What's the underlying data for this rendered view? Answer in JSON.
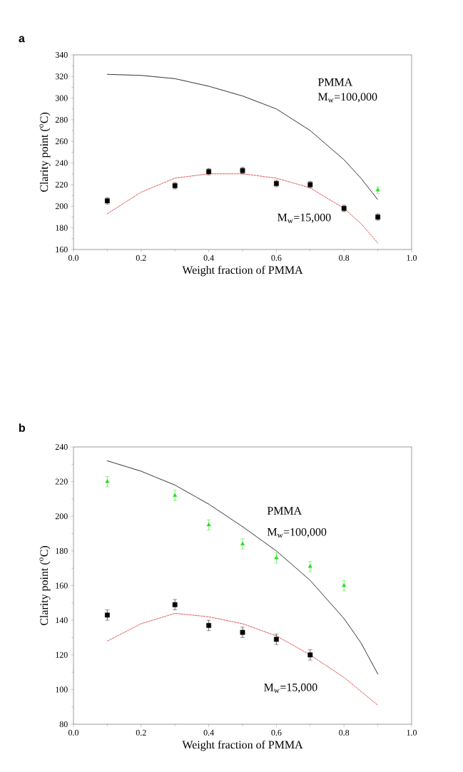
{
  "chart_data": [
    {
      "type": "scatter",
      "title": "a",
      "xlabel": "Weight fraction of PMMA",
      "ylabel": "Clarity point ($^{o}$C)",
      "xlim": [
        0.0,
        1.0
      ],
      "ylim": [
        160,
        340
      ],
      "xticks": [
        {
          "value": 0.0,
          "label": "0.0"
        },
        {
          "value": 0.2,
          "label": "0.2"
        },
        {
          "value": 0.4,
          "label": "0.4"
        },
        {
          "value": 0.6,
          "label": "0.6"
        },
        {
          "value": 0.8,
          "label": "0.8"
        },
        {
          "value": 1.0,
          "label": "1.0"
        }
      ],
      "yticks": [
        160,
        180,
        200,
        220,
        240,
        260,
        280,
        300,
        320,
        340
      ],
      "series": [
        {
          "type": "line",
          "color": "#333333",
          "line_style": "dotted",
          "marker": "none",
          "x": [
            0.1,
            0.2,
            0.3,
            0.4,
            0.5,
            0.6,
            0.7,
            0.8,
            0.85,
            0.9
          ],
          "values": [
            322,
            321,
            318,
            311,
            302,
            290,
            270,
            243,
            226,
            206
          ]
        },
        {
          "type": "line",
          "color": "#e05555",
          "line_style": "dashed",
          "marker": "none",
          "x": [
            0.1,
            0.2,
            0.3,
            0.4,
            0.5,
            0.6,
            0.7,
            0.8,
            0.85,
            0.9
          ],
          "values": [
            193,
            213,
            226,
            230,
            230,
            226,
            217,
            198,
            184,
            166
          ]
        },
        {
          "color": "#000000",
          "marker": "square",
          "x": [
            0.1,
            0.3,
            0.4,
            0.5,
            0.6,
            0.7,
            0.8,
            0.9
          ],
          "values": [
            205,
            219,
            232,
            233,
            221,
            220,
            198,
            190
          ],
          "errors": [
            3,
            3,
            3,
            3,
            3,
            3,
            3,
            3
          ]
        },
        {
          "color": "#22dd22",
          "marker": "triangle",
          "x": [
            0.9
          ],
          "values": [
            215
          ],
          "errors": [
            3
          ]
        }
      ],
      "annotations": [
        "PMMA",
        "M$_{w}$=100,000",
        "M$_{w}$=15,000"
      ]
    },
    {
      "type": "scatter",
      "title": "b",
      "xlabel": "Weight fraction of PMMA",
      "ylabel": "Clarity point ($^{o}$C)",
      "xlim": [
        0.0,
        1.0
      ],
      "ylim": [
        80,
        240
      ],
      "xticks": [
        {
          "value": 0.0,
          "label": "0.0"
        },
        {
          "value": 0.2,
          "label": "0.2"
        },
        {
          "value": 0.4,
          "label": "0.4"
        },
        {
          "value": 0.6,
          "label": "0.6"
        },
        {
          "value": 0.8,
          "label": "0.8"
        },
        {
          "value": 1.0,
          "label": "1.0"
        }
      ],
      "yticks": [
        80,
        100,
        120,
        140,
        160,
        180,
        200,
        220,
        240
      ],
      "series": [
        {
          "type": "line",
          "color": "#333333",
          "line_style": "dotted",
          "marker": "none",
          "x": [
            0.1,
            0.2,
            0.3,
            0.4,
            0.5,
            0.6,
            0.7,
            0.8,
            0.85,
            0.9
          ],
          "values": [
            232,
            226,
            218,
            207,
            194,
            180,
            163,
            141,
            127,
            109
          ]
        },
        {
          "type": "line",
          "color": "#e05555",
          "line_style": "dashed",
          "marker": "none",
          "x": [
            0.1,
            0.2,
            0.3,
            0.4,
            0.5,
            0.6,
            0.7,
            0.8,
            0.9
          ],
          "values": [
            128,
            138,
            144,
            142,
            138,
            131,
            120,
            107,
            91
          ]
        },
        {
          "color": "#000000",
          "marker": "square",
          "x": [
            0.1,
            0.3,
            0.4,
            0.5,
            0.6,
            0.7
          ],
          "values": [
            143,
            149,
            137,
            133,
            129,
            120
          ],
          "errors": [
            3,
            3,
            3,
            3,
            3,
            3
          ]
        },
        {
          "color": "#22dd22",
          "marker": "triangle",
          "x": [
            0.1,
            0.3,
            0.4,
            0.5,
            0.6,
            0.7,
            0.8
          ],
          "values": [
            220,
            212,
            195,
            184,
            176,
            171,
            160
          ],
          "errors": [
            3,
            3,
            3,
            3,
            3,
            3,
            3
          ]
        }
      ],
      "annotations": [
        "PMMA",
        "M$_{w}$=100,000",
        "M$_{w}$=15,000"
      ]
    }
  ]
}
